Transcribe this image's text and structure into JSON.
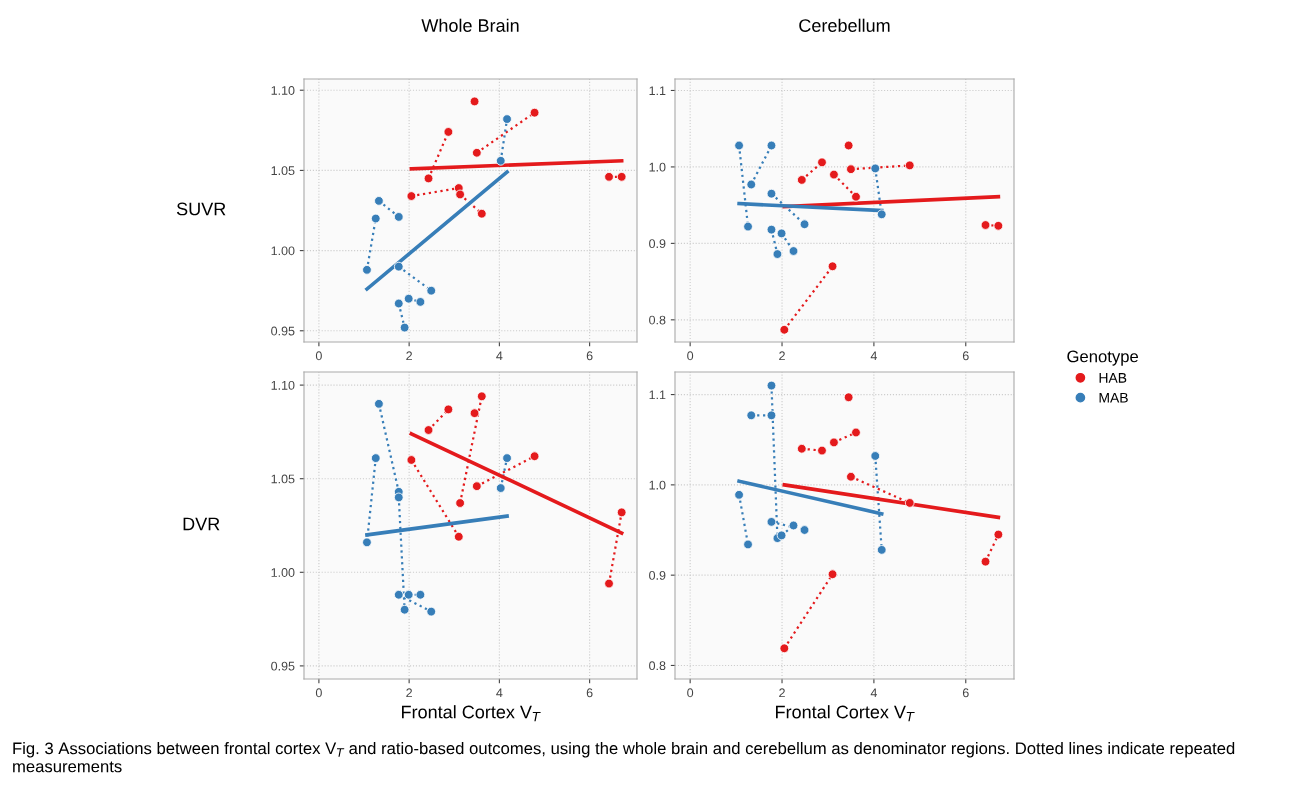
{
  "chart_data": [
    {
      "type": "scatter",
      "title": "Whole Brain",
      "ylabel": "SUVR",
      "xlim": [
        -0.33,
        7.05
      ],
      "ylim": [
        0.943,
        1.107
      ],
      "xticks": [
        0,
        2,
        4,
        6
      ],
      "yticks": [
        {
          "value": 0.95,
          "label": "0.95"
        },
        {
          "value": 1.0,
          "label": "1.00"
        },
        {
          "value": 1.05,
          "label": "1.05"
        },
        {
          "value": 1.1,
          "label": "1.10"
        }
      ],
      "grid": true,
      "series": [
        {
          "marker": "circle",
          "color": "#e41a1c",
          "x": [
            3.45,
            2.43,
            2.87,
            3.5,
            4.78,
            2.05,
            3.1,
            3.13,
            3.61,
            6.43,
            6.71
          ],
          "values": [
            1.093,
            1.045,
            1.074,
            1.061,
            1.086,
            1.034,
            1.039,
            1.035,
            1.023,
            1.046,
            1.046
          ]
        },
        {
          "marker": "circle",
          "color": "#377eb8",
          "x": [
            1.065,
            1.26,
            1.33,
            1.77,
            1.77,
            2.49,
            1.77,
            1.9,
            1.99,
            2.25,
            4.03,
            4.17
          ],
          "values": [
            0.988,
            1.02,
            1.031,
            1.021,
            0.99,
            0.975,
            0.967,
            0.952,
            0.97,
            0.968,
            1.056,
            1.082
          ]
        },
        {
          "type": "line",
          "marker": "none",
          "line_style": "dotted",
          "color": "#e41a1c",
          "x": [
            2.43,
            2.87
          ],
          "values": [
            1.045,
            1.074
          ]
        },
        {
          "type": "line",
          "marker": "none",
          "line_style": "dotted",
          "color": "#e41a1c",
          "x": [
            3.5,
            4.78
          ],
          "values": [
            1.061,
            1.086
          ]
        },
        {
          "type": "line",
          "marker": "none",
          "line_style": "dotted",
          "color": "#e41a1c",
          "x": [
            2.05,
            3.1
          ],
          "values": [
            1.034,
            1.039
          ]
        },
        {
          "type": "line",
          "marker": "none",
          "line_style": "dotted",
          "color": "#e41a1c",
          "x": [
            3.13,
            3.61
          ],
          "values": [
            1.035,
            1.023
          ]
        },
        {
          "type": "line",
          "marker": "none",
          "line_style": "dotted",
          "color": "#e41a1c",
          "x": [
            6.43,
            6.71
          ],
          "values": [
            1.046,
            1.046
          ]
        },
        {
          "type": "line",
          "marker": "none",
          "line_style": "dotted",
          "color": "#377eb8",
          "x": [
            1.065,
            1.26
          ],
          "values": [
            0.988,
            1.02
          ]
        },
        {
          "type": "line",
          "marker": "none",
          "line_style": "dotted",
          "color": "#377eb8",
          "x": [
            1.33,
            1.77
          ],
          "values": [
            1.031,
            1.021
          ]
        },
        {
          "type": "line",
          "marker": "none",
          "line_style": "dotted",
          "color": "#377eb8",
          "x": [
            1.77,
            2.49
          ],
          "values": [
            0.99,
            0.975
          ]
        },
        {
          "type": "line",
          "marker": "none",
          "line_style": "dotted",
          "color": "#377eb8",
          "x": [
            1.77,
            1.9
          ],
          "values": [
            0.967,
            0.952
          ]
        },
        {
          "type": "line",
          "marker": "none",
          "line_style": "dotted",
          "color": "#377eb8",
          "x": [
            1.99,
            2.25
          ],
          "values": [
            0.97,
            0.968
          ]
        },
        {
          "type": "line",
          "marker": "none",
          "line_style": "dotted",
          "color": "#377eb8",
          "x": [
            4.03,
            4.17
          ],
          "values": [
            1.056,
            1.082
          ]
        },
        {
          "type": "line",
          "marker": "none",
          "line_style": "solid",
          "color": "#e41a1c",
          "x": [
            2.05,
            6.71
          ],
          "values": [
            1.051,
            1.056
          ]
        },
        {
          "type": "line",
          "marker": "none",
          "line_style": "solid",
          "color": "#377eb8",
          "x": [
            1.065,
            4.17
          ],
          "values": [
            0.976,
            1.049
          ]
        }
      ]
    },
    {
      "type": "scatter",
      "title": "Cerebellum",
      "xlim": [
        -0.33,
        7.05
      ],
      "ylim": [
        0.771,
        1.115
      ],
      "xticks": [
        0,
        2,
        4,
        6
      ],
      "yticks": [
        {
          "value": 0.8,
          "label": "0.8"
        },
        {
          "value": 0.9,
          "label": "0.9"
        },
        {
          "value": 1.0,
          "label": "1.0"
        },
        {
          "value": 1.1,
          "label": "1.1"
        }
      ],
      "grid": true,
      "legend": "right",
      "legend_title": "Genotype",
      "series": [
        {
          "marker": "circle",
          "name": "HAB",
          "color": "#e41a1c",
          "x": [
            3.45,
            2.43,
            2.87,
            3.5,
            4.78,
            2.05,
            3.1,
            3.13,
            3.61,
            6.43,
            6.71
          ],
          "values": [
            1.028,
            0.983,
            1.006,
            0.997,
            1.002,
            0.787,
            0.87,
            0.99,
            0.961,
            0.924,
            0.923
          ]
        },
        {
          "marker": "circle",
          "name": "MAB",
          "color": "#377eb8",
          "x": [
            1.065,
            1.26,
            1.33,
            1.77,
            1.77,
            2.49,
            1.77,
            1.9,
            1.99,
            2.25,
            4.03,
            4.17
          ],
          "values": [
            1.028,
            0.922,
            0.977,
            1.028,
            0.965,
            0.925,
            0.918,
            0.886,
            0.913,
            0.89,
            0.998,
            0.938
          ]
        },
        {
          "type": "line",
          "marker": "none",
          "line_style": "dotted",
          "color": "#e41a1c",
          "x": [
            2.43,
            2.87
          ],
          "values": [
            0.983,
            1.006
          ]
        },
        {
          "type": "line",
          "marker": "none",
          "line_style": "dotted",
          "color": "#e41a1c",
          "x": [
            3.5,
            4.78
          ],
          "values": [
            0.997,
            1.002
          ]
        },
        {
          "type": "line",
          "marker": "none",
          "line_style": "dotted",
          "color": "#e41a1c",
          "x": [
            2.05,
            3.1
          ],
          "values": [
            0.787,
            0.87
          ]
        },
        {
          "type": "line",
          "marker": "none",
          "line_style": "dotted",
          "color": "#e41a1c",
          "x": [
            3.13,
            3.61
          ],
          "values": [
            0.99,
            0.961
          ]
        },
        {
          "type": "line",
          "marker": "none",
          "line_style": "dotted",
          "color": "#e41a1c",
          "x": [
            6.43,
            6.71
          ],
          "values": [
            0.924,
            0.923
          ]
        },
        {
          "type": "line",
          "marker": "none",
          "line_style": "dotted",
          "color": "#377eb8",
          "x": [
            1.065,
            1.26
          ],
          "values": [
            1.028,
            0.922
          ]
        },
        {
          "type": "line",
          "marker": "none",
          "line_style": "dotted",
          "color": "#377eb8",
          "x": [
            1.33,
            1.77
          ],
          "values": [
            0.977,
            1.028
          ]
        },
        {
          "type": "line",
          "marker": "none",
          "line_style": "dotted",
          "color": "#377eb8",
          "x": [
            1.77,
            2.49
          ],
          "values": [
            0.965,
            0.925
          ]
        },
        {
          "type": "line",
          "marker": "none",
          "line_style": "dotted",
          "color": "#377eb8",
          "x": [
            1.77,
            1.9
          ],
          "values": [
            0.918,
            0.886
          ]
        },
        {
          "type": "line",
          "marker": "none",
          "line_style": "dotted",
          "color": "#377eb8",
          "x": [
            1.99,
            2.25
          ],
          "values": [
            0.913,
            0.89
          ]
        },
        {
          "type": "line",
          "marker": "none",
          "line_style": "dotted",
          "color": "#377eb8",
          "x": [
            4.03,
            4.17
          ],
          "values": [
            0.998,
            0.938
          ]
        },
        {
          "type": "line",
          "marker": "none",
          "line_style": "solid",
          "color": "#e41a1c",
          "x": [
            2.05,
            6.71
          ],
          "values": [
            0.948,
            0.961
          ]
        },
        {
          "type": "line",
          "marker": "none",
          "line_style": "solid",
          "color": "#377eb8",
          "x": [
            1.065,
            4.17
          ],
          "values": [
            0.952,
            0.943
          ]
        }
      ]
    },
    {
      "type": "scatter",
      "ylabel": "DVR",
      "xlabel": "Frontal Cortex V$_{T}$",
      "xlim": [
        -0.33,
        7.05
      ],
      "ylim": [
        0.943,
        1.107
      ],
      "xticks": [
        0,
        2,
        4,
        6
      ],
      "yticks": [
        {
          "value": 0.95,
          "label": "0.95"
        },
        {
          "value": 1.0,
          "label": "1.00"
        },
        {
          "value": 1.05,
          "label": "1.05"
        },
        {
          "value": 1.1,
          "label": "1.10"
        }
      ],
      "grid": true,
      "series": [
        {
          "marker": "circle",
          "color": "#e41a1c",
          "x": [
            3.45,
            2.43,
            2.87,
            3.5,
            4.78,
            2.05,
            3.1,
            3.13,
            3.61,
            6.43,
            6.71
          ],
          "values": [
            1.085,
            1.076,
            1.087,
            1.046,
            1.062,
            1.06,
            1.019,
            1.037,
            1.094,
            0.994,
            1.032
          ]
        },
        {
          "marker": "circle",
          "color": "#377eb8",
          "x": [
            1.065,
            1.26,
            1.33,
            1.77,
            1.77,
            2.49,
            1.77,
            1.9,
            1.99,
            2.25,
            4.03,
            4.17
          ],
          "values": [
            1.016,
            1.061,
            1.09,
            1.043,
            0.988,
            0.979,
            1.04,
            0.98,
            0.988,
            0.988,
            1.045,
            1.061
          ]
        },
        {
          "type": "line",
          "marker": "none",
          "line_style": "dotted",
          "color": "#e41a1c",
          "x": [
            2.43,
            2.87
          ],
          "values": [
            1.076,
            1.087
          ]
        },
        {
          "type": "line",
          "marker": "none",
          "line_style": "dotted",
          "color": "#e41a1c",
          "x": [
            3.5,
            4.78
          ],
          "values": [
            1.046,
            1.062
          ]
        },
        {
          "type": "line",
          "marker": "none",
          "line_style": "dotted",
          "color": "#e41a1c",
          "x": [
            2.05,
            3.1
          ],
          "values": [
            1.06,
            1.019
          ]
        },
        {
          "type": "line",
          "marker": "none",
          "line_style": "dotted",
          "color": "#e41a1c",
          "x": [
            3.13,
            3.61
          ],
          "values": [
            1.037,
            1.094
          ]
        },
        {
          "type": "line",
          "marker": "none",
          "line_style": "dotted",
          "color": "#e41a1c",
          "x": [
            6.43,
            6.71
          ],
          "values": [
            0.994,
            1.032
          ]
        },
        {
          "type": "line",
          "marker": "none",
          "line_style": "dotted",
          "color": "#377eb8",
          "x": [
            1.065,
            1.26
          ],
          "values": [
            1.016,
            1.061
          ]
        },
        {
          "type": "line",
          "marker": "none",
          "line_style": "dotted",
          "color": "#377eb8",
          "x": [
            1.33,
            1.77
          ],
          "values": [
            1.09,
            1.043
          ]
        },
        {
          "type": "line",
          "marker": "none",
          "line_style": "dotted",
          "color": "#377eb8",
          "x": [
            1.77,
            2.49
          ],
          "values": [
            0.988,
            0.979
          ]
        },
        {
          "type": "line",
          "marker": "none",
          "line_style": "dotted",
          "color": "#377eb8",
          "x": [
            1.77,
            1.9
          ],
          "values": [
            1.04,
            0.98
          ]
        },
        {
          "type": "line",
          "marker": "none",
          "line_style": "dotted",
          "color": "#377eb8",
          "x": [
            1.99,
            2.25
          ],
          "values": [
            0.988,
            0.988
          ]
        },
        {
          "type": "line",
          "marker": "none",
          "line_style": "dotted",
          "color": "#377eb8",
          "x": [
            4.03,
            4.17
          ],
          "values": [
            1.045,
            1.061
          ]
        },
        {
          "type": "line",
          "marker": "none",
          "line_style": "solid",
          "color": "#e41a1c",
          "x": [
            2.05,
            6.71
          ],
          "values": [
            1.074,
            1.021
          ]
        },
        {
          "type": "line",
          "marker": "none",
          "line_style": "solid",
          "color": "#377eb8",
          "x": [
            1.065,
            4.17
          ],
          "values": [
            1.02,
            1.03
          ]
        }
      ]
    },
    {
      "type": "scatter",
      "xlabel": "Frontal Cortex V$_{T}$",
      "xlim": [
        -0.33,
        7.05
      ],
      "ylim": [
        0.785,
        1.125
      ],
      "xticks": [
        0,
        2,
        4,
        6
      ],
      "yticks": [
        {
          "value": 0.8,
          "label": "0.8"
        },
        {
          "value": 0.9,
          "label": "0.9"
        },
        {
          "value": 1.0,
          "label": "1.0"
        },
        {
          "value": 1.1,
          "label": "1.1"
        }
      ],
      "grid": true,
      "annotations": [
        "Fig. 3 Associations between frontal cortex V$_{T}$ and ratio-based outcomes, using the whole brain and cerebellum as denominator regions. Dotted lines indicate repeated measurements"
      ],
      "series": [
        {
          "marker": "circle",
          "color": "#e41a1c",
          "x": [
            3.45,
            2.43,
            2.87,
            3.5,
            4.78,
            2.05,
            3.1,
            3.13,
            3.61,
            6.43,
            6.71
          ],
          "values": [
            1.097,
            1.04,
            1.038,
            1.009,
            0.98,
            0.819,
            0.901,
            1.047,
            1.058,
            0.915,
            0.945
          ]
        },
        {
          "marker": "circle",
          "color": "#377eb8",
          "x": [
            1.065,
            1.26,
            1.33,
            1.77,
            1.77,
            2.49,
            1.77,
            1.9,
            1.99,
            2.25,
            4.03,
            4.17
          ],
          "values": [
            0.989,
            0.934,
            1.077,
            1.077,
            0.959,
            0.95,
            1.11,
            0.941,
            0.944,
            0.955,
            1.032,
            0.928
          ]
        },
        {
          "type": "line",
          "marker": "none",
          "line_style": "dotted",
          "color": "#e41a1c",
          "x": [
            2.43,
            2.87
          ],
          "values": [
            1.04,
            1.038
          ]
        },
        {
          "type": "line",
          "marker": "none",
          "line_style": "dotted",
          "color": "#e41a1c",
          "x": [
            3.5,
            4.78
          ],
          "values": [
            1.009,
            0.98
          ]
        },
        {
          "type": "line",
          "marker": "none",
          "line_style": "dotted",
          "color": "#e41a1c",
          "x": [
            2.05,
            3.1
          ],
          "values": [
            0.819,
            0.901
          ]
        },
        {
          "type": "line",
          "marker": "none",
          "line_style": "dotted",
          "color": "#e41a1c",
          "x": [
            3.13,
            3.61
          ],
          "values": [
            1.047,
            1.058
          ]
        },
        {
          "type": "line",
          "marker": "none",
          "line_style": "dotted",
          "color": "#e41a1c",
          "x": [
            6.43,
            6.71
          ],
          "values": [
            0.915,
            0.945
          ]
        },
        {
          "type": "line",
          "marker": "none",
          "line_style": "dotted",
          "color": "#377eb8",
          "x": [
            1.065,
            1.26
          ],
          "values": [
            0.989,
            0.934
          ]
        },
        {
          "type": "line",
          "marker": "none",
          "line_style": "dotted",
          "color": "#377eb8",
          "x": [
            1.33,
            1.77
          ],
          "values": [
            1.077,
            1.077
          ]
        },
        {
          "type": "line",
          "marker": "none",
          "line_style": "dotted",
          "color": "#377eb8",
          "x": [
            1.77,
            2.49
          ],
          "values": [
            0.959,
            0.95
          ]
        },
        {
          "type": "line",
          "marker": "none",
          "line_style": "dotted",
          "color": "#377eb8",
          "x": [
            1.77,
            1.9
          ],
          "values": [
            1.11,
            0.941
          ]
        },
        {
          "type": "line",
          "marker": "none",
          "line_style": "dotted",
          "color": "#377eb8",
          "x": [
            1.99,
            2.25
          ],
          "values": [
            0.944,
            0.955
          ]
        },
        {
          "type": "line",
          "marker": "none",
          "line_style": "dotted",
          "color": "#377eb8",
          "x": [
            4.03,
            4.17
          ],
          "values": [
            1.032,
            0.928
          ]
        },
        {
          "type": "line",
          "marker": "none",
          "line_style": "solid",
          "color": "#e41a1c",
          "x": [
            2.05,
            6.71
          ],
          "values": [
            1.0,
            0.964
          ]
        },
        {
          "type": "line",
          "marker": "none",
          "line_style": "solid",
          "color": "#377eb8",
          "x": [
            1.065,
            4.17
          ],
          "values": [
            1.004,
            0.968
          ]
        }
      ]
    }
  ]
}
